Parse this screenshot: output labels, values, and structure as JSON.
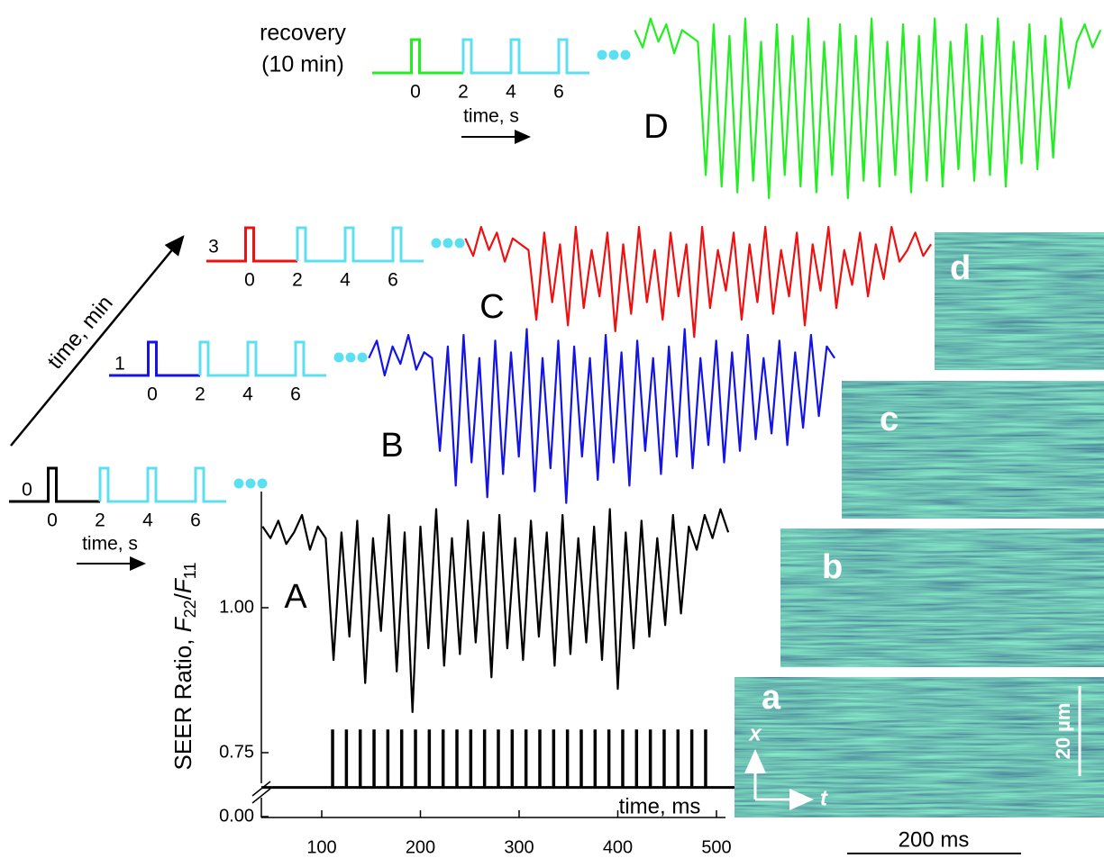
{
  "chart_data": {
    "type": "line",
    "xlabel": "time, ms",
    "ylabel_parts": [
      "SEER Ratio, ",
      "F",
      "22",
      "/",
      "F",
      "11"
    ],
    "xlim": [
      39,
      510
    ],
    "xticks": [
      100,
      200,
      300,
      400,
      500
    ],
    "ylim": [
      0.69,
      1.2
    ],
    "yticks": [
      {
        "value": 0,
        "label": "0.00"
      },
      {
        "value": 0.75,
        "label": "0.75"
      },
      {
        "value": 1,
        "label": "1.00"
      }
    ],
    "x": [
      40,
      48,
      56,
      64,
      72,
      80,
      88,
      96,
      104,
      112,
      120,
      128,
      136,
      144,
      152,
      160,
      168,
      176,
      184,
      192,
      200,
      208,
      216,
      224,
      232,
      240,
      248,
      256,
      264,
      272,
      280,
      288,
      296,
      304,
      312,
      320,
      328,
      336,
      344,
      352,
      360,
      368,
      376,
      384,
      392,
      400,
      408,
      416,
      424,
      432,
      440,
      448,
      456,
      464,
      472,
      480,
      488,
      496,
      504,
      512
    ],
    "series": [
      {
        "name": "A",
        "color": "#000000",
        "values": [
          1.14,
          1.12,
          1.15,
          1.11,
          1.13,
          1.16,
          1.1,
          1.14,
          1.12,
          0.91,
          1.13,
          0.95,
          1.15,
          0.87,
          1.12,
          0.96,
          1.16,
          0.89,
          1.13,
          0.82,
          1.14,
          0.93,
          1.17,
          0.9,
          1.12,
          0.92,
          1.15,
          0.94,
          1.13,
          0.88,
          1.16,
          0.93,
          1.12,
          0.91,
          1.15,
          0.95,
          1.13,
          0.9,
          1.16,
          0.92,
          1.12,
          0.94,
          1.14,
          0.91,
          1.17,
          0.86,
          1.13,
          0.93,
          1.15,
          0.95,
          1.12,
          0.97,
          1.16,
          0.99,
          1.14,
          1.1,
          1.16,
          1.12,
          1.17,
          1.13
        ]
      },
      {
        "name": "B",
        "color": "#1414e6",
        "values": [
          1.12,
          1.15,
          1.09,
          1.14,
          1.11,
          1.16,
          1.1,
          1.13,
          1.12,
          0.96,
          1.14,
          0.9,
          1.16,
          0.94,
          1.12,
          0.88,
          1.15,
          0.92,
          1.13,
          0.95,
          1.17,
          0.89,
          1.12,
          0.93,
          1.15,
          0.87,
          1.14,
          0.95,
          1.12,
          0.91,
          1.16,
          0.94,
          1.13,
          0.9,
          1.15,
          0.96,
          1.12,
          0.92,
          1.14,
          0.95,
          1.17,
          0.93,
          1.12,
          0.97,
          1.15,
          0.94,
          1.13,
          0.96,
          1.16,
          0.98,
          1.12,
          0.99,
          1.15,
          0.97,
          1.13,
          1.0,
          1.16,
          1.02,
          1.14,
          1.12
        ]
      },
      {
        "name": "C",
        "color": "#ee1111",
        "values": [
          1.14,
          1.11,
          1.16,
          1.12,
          1.15,
          1.1,
          1.14,
          1.13,
          1.12,
          1.0,
          1.15,
          1.03,
          1.13,
          0.99,
          1.16,
          1.02,
          1.12,
          1.04,
          1.15,
          0.98,
          1.13,
          1.01,
          1.16,
          1.03,
          1.12,
          1.0,
          1.15,
          1.04,
          1.13,
          0.97,
          1.16,
          1.02,
          1.12,
          1.05,
          1.15,
          1.0,
          1.13,
          1.03,
          1.16,
          1.01,
          1.12,
          1.04,
          1.15,
          0.99,
          1.13,
          1.05,
          1.16,
          1.02,
          1.12,
          1.06,
          1.15,
          1.04,
          1.13,
          1.07,
          1.16,
          1.1,
          1.12,
          1.15,
          1.11,
          1.13
        ]
      },
      {
        "name": "D",
        "color": "#22ee22",
        "values": [
          1.15,
          1.12,
          1.17,
          1.13,
          1.16,
          1.11,
          1.15,
          1.14,
          1.13,
          0.9,
          1.16,
          0.88,
          1.14,
          0.87,
          1.17,
          0.89,
          1.13,
          0.86,
          1.16,
          0.9,
          1.14,
          0.88,
          1.17,
          0.87,
          1.13,
          0.9,
          1.16,
          0.86,
          1.14,
          0.89,
          1.17,
          0.88,
          1.13,
          0.9,
          1.16,
          0.87,
          1.14,
          0.89,
          1.17,
          0.88,
          1.13,
          0.91,
          1.16,
          0.89,
          1.14,
          0.9,
          1.17,
          0.88,
          1.13,
          0.92,
          1.16,
          0.91,
          1.14,
          0.93,
          1.17,
          1.05,
          1.13,
          1.16,
          1.12,
          1.15
        ]
      }
    ],
    "stimulus": {
      "baseline": 0.69,
      "peak": 0.79,
      "x": [
        111,
        125,
        139,
        153,
        167,
        181,
        195,
        209,
        223,
        237,
        251,
        265,
        279,
        293,
        307,
        321,
        335,
        349,
        363,
        377,
        391,
        405,
        419,
        433,
        447,
        461,
        475,
        489
      ]
    },
    "protocols": {
      "ticks": [
        0,
        2,
        4,
        6
      ],
      "xlabel": "time, s",
      "pulse_color": "#5cdff0",
      "labels": [
        "0",
        "1",
        "3",
        "recovery"
      ],
      "sublabel": "(10 min)",
      "axis_label": "time, min"
    },
    "images": {
      "labels": [
        "a",
        "b",
        "c",
        "d"
      ],
      "xlabel": "t",
      "ylabel": "x",
      "scale_y": "20 µm",
      "scale_x": "200 ms"
    }
  }
}
